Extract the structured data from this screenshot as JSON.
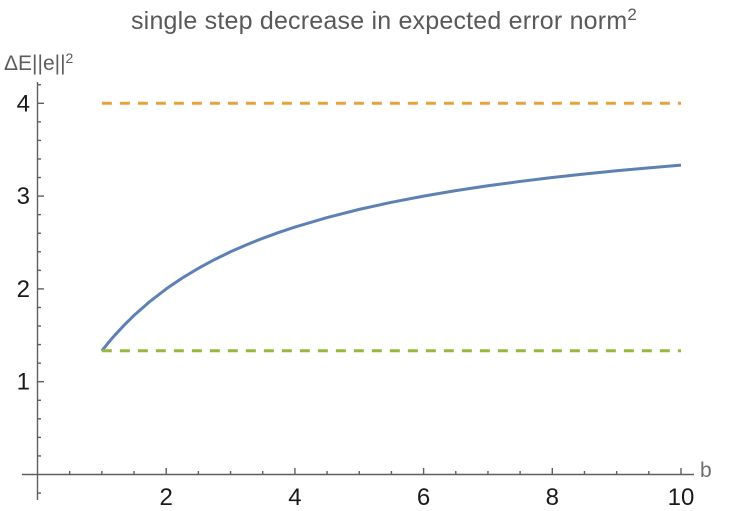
{
  "title": {
    "main": "single step decrease in expected error norm",
    "exponent": "2"
  },
  "axes": {
    "ylabel_main": "ΔE||e||",
    "ylabel_exponent": "2",
    "xlabel": "b"
  },
  "colors": {
    "curve_blue": "#5e81b5",
    "dashed_orange": "#e6a33c",
    "dashed_green": "#98b73e",
    "axis_gray": "#5f5f5f",
    "tick_label": "#1a1a1a",
    "title_gray": "#595959"
  },
  "chart_data": {
    "type": "line",
    "title": "single step decrease in expected error norm^2",
    "xlabel": "b",
    "ylabel": "ΔE||e||^2",
    "xlim": [
      0,
      10.2
    ],
    "ylim": [
      0,
      4.25
    ],
    "grid": false,
    "legend": false,
    "x_major_ticks": [
      2,
      4,
      6,
      8,
      10
    ],
    "x_minor_tick_step": 0.5,
    "x_minor_range": [
      0.5,
      10
    ],
    "y_major_ticks": [
      1,
      2,
      3,
      4
    ],
    "y_minor_tick_step": 0.2,
    "y_minor_range": [
      -0.2,
      4.2
    ],
    "series": [
      {
        "name": "expected-decrease-curve",
        "style": "solid",
        "color": "#5e81b5",
        "x": [
          1,
          1.1,
          1.2,
          1.35,
          1.5,
          1.75,
          2,
          2.25,
          2.5,
          2.75,
          3,
          3.25,
          3.5,
          3.75,
          4,
          4.5,
          5,
          5.5,
          6,
          6.5,
          7,
          7.5,
          8,
          8.5,
          9,
          9.5,
          10
        ],
        "y": [
          1.3333,
          1.4194,
          1.5,
          1.6119,
          1.7143,
          1.8667,
          2,
          2.1176,
          2.2222,
          2.3158,
          2.4,
          2.4762,
          2.5455,
          2.6087,
          2.6667,
          2.7692,
          2.8571,
          2.9333,
          3,
          3.0588,
          3.1111,
          3.1579,
          3.2,
          3.2381,
          3.2727,
          3.3043,
          3.3333
        ]
      },
      {
        "name": "upper-asymptote-line",
        "style": "dashed",
        "color": "#e6a33c",
        "x": [
          1,
          10
        ],
        "y": [
          4,
          4
        ]
      },
      {
        "name": "lower-bound-line",
        "style": "dashed",
        "color": "#98b73e",
        "x": [
          1,
          10
        ],
        "y": [
          1.3333,
          1.3333
        ]
      }
    ]
  }
}
